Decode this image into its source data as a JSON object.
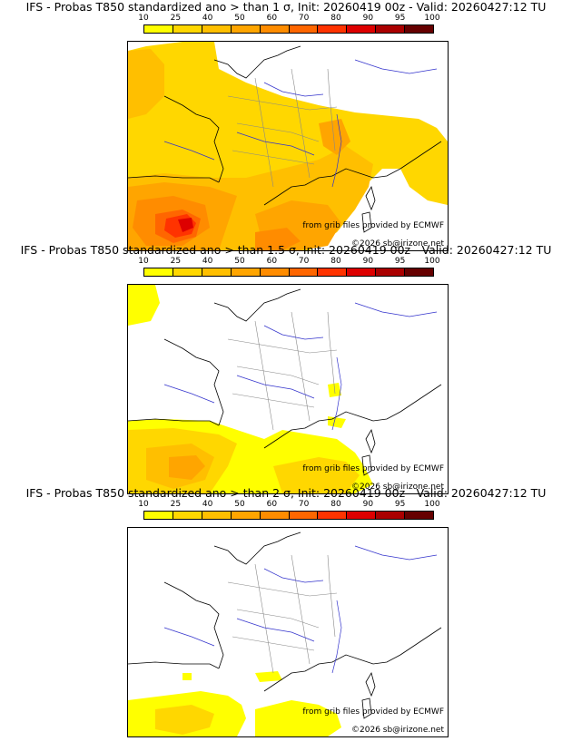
{
  "colorbar": {
    "ticks": [
      "10",
      "25",
      "40",
      "50",
      "60",
      "70",
      "80",
      "90",
      "95",
      "100"
    ],
    "colors": [
      "#ffff00",
      "#ffd700",
      "#ffbf00",
      "#ffa500",
      "#ff8c00",
      "#ff6600",
      "#ff3300",
      "#dd0000",
      "#aa0000",
      "#660000"
    ]
  },
  "panels": [
    {
      "title": "IFS - Probas T850  standardized ano > than 1 σ, Init: 20260419 00z - Valid: 20260427:12 TU",
      "credit_source": "from grib files provided by ECMWF",
      "credit_copyright": "©2026 sb@irizone.net"
    },
    {
      "title": "IFS - Probas T850  standardized ano > than 1.5 σ, Init: 20260419 00z - Valid: 20260427:12 TU",
      "credit_source": "from grib files provided by ECMWF",
      "credit_copyright": "©2026 sb@irizone.net"
    },
    {
      "title": "IFS - Probas T850  standardized ano > than 2 σ, Init: 20260419 00z - Valid: 20260427:12 TU",
      "credit_source": "from grib files provided by ECMWF",
      "credit_copyright": "©2026 sb@irizone.net"
    }
  ]
}
